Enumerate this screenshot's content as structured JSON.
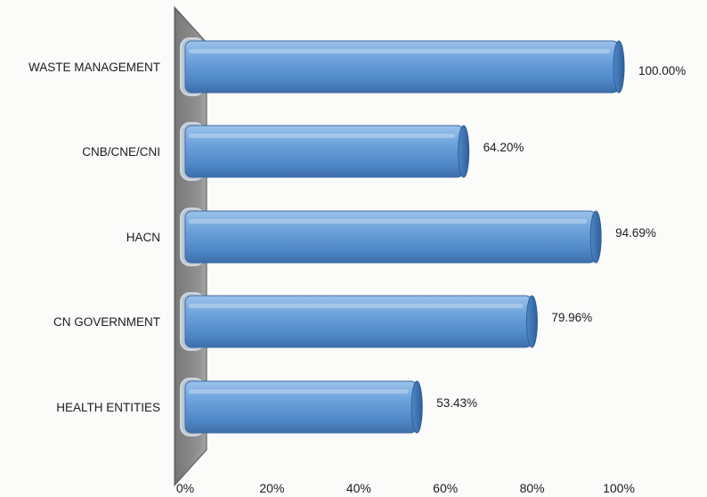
{
  "chart_data": {
    "type": "bar",
    "orientation": "horizontal",
    "categories": [
      "WASTE MANAGEMENT",
      "CNB/CNE/CNI",
      "HACN",
      "CN GOVERNMENT",
      "HEALTH ENTITIES"
    ],
    "values": [
      100.0,
      64.2,
      94.69,
      79.96,
      53.43
    ],
    "data_labels": [
      "100.00%",
      "64.20%",
      "94.69%",
      "79.96%",
      "53.43%"
    ],
    "x_ticks": [
      "0%",
      "20%",
      "40%",
      "60%",
      "80%",
      "100%"
    ],
    "xlim": [
      0,
      100
    ],
    "unit": "%",
    "grid": false,
    "style": "3d-cylinder",
    "bar_color": "#5b93d2",
    "wall_color": "#8a8a8a"
  }
}
